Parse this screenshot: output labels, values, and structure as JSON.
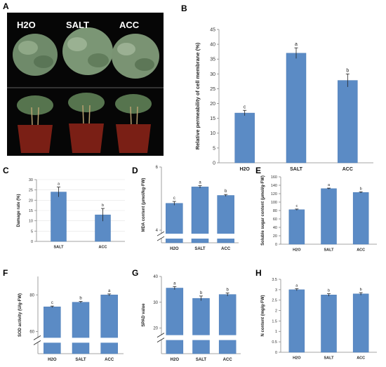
{
  "panels": {
    "A": {
      "letter": "A",
      "labels": [
        "H2O",
        "SALT",
        "ACC"
      ]
    }
  },
  "chart_data": [
    {
      "id": "B",
      "letter": "B",
      "type": "bar",
      "categories": [
        "H2O",
        "SALT",
        "ACC"
      ],
      "values": [
        16.8,
        37.0,
        27.8
      ],
      "errors": [
        0.9,
        1.8,
        2.2
      ],
      "sig": [
        "c",
        "a",
        "b"
      ],
      "ylabel": "Relative permeability of cell membrane (%)",
      "ylim": [
        0,
        45
      ],
      "ticks": [
        0,
        5,
        10,
        15,
        20,
        25,
        30,
        35,
        40,
        45
      ],
      "broken": false,
      "grid": false
    },
    {
      "id": "C",
      "letter": "C",
      "type": "bar",
      "categories": [
        "SALT",
        "ACC"
      ],
      "values": [
        24.0,
        12.9
      ],
      "errors": [
        2.4,
        3.1
      ],
      "sig": [
        "a",
        "b"
      ],
      "ylabel": "Damage rate (%)",
      "ylim": [
        0,
        30
      ],
      "ticks": [
        0,
        5,
        10,
        15,
        20,
        25,
        30
      ],
      "broken": false,
      "grid": true
    },
    {
      "id": "D",
      "letter": "D",
      "type": "bar",
      "categories": [
        "H2O",
        "SALT",
        "ACC"
      ],
      "values": [
        4.85,
        5.37,
        5.1
      ],
      "errors": [
        0.06,
        0.04,
        0.03
      ],
      "sig": [
        "c",
        "a",
        "b"
      ],
      "ylabel": "MDA content (μmol/kg·FW)",
      "ylim": [
        3.6,
        6.0
      ],
      "ticks": [
        4,
        6
      ],
      "broken": true,
      "grid": false
    },
    {
      "id": "E",
      "letter": "E",
      "type": "bar",
      "categories": [
        "H2O",
        "SALT",
        "ACC"
      ],
      "values": [
        82,
        132,
        123
      ],
      "errors": [
        1.5,
        1.2,
        1.5
      ],
      "sig": [
        "c",
        "a",
        "b"
      ],
      "ylabel": "Soluble sugar content (μmol/g·FW)",
      "ylim": [
        0,
        160
      ],
      "ticks": [
        0,
        20,
        40,
        60,
        80,
        100,
        120,
        140,
        160
      ],
      "broken": false,
      "grid": false
    },
    {
      "id": "F",
      "letter": "F",
      "type": "bar",
      "categories": [
        "H2O",
        "SALT",
        "ACC"
      ],
      "values": [
        73.5,
        76,
        80
      ],
      "errors": [
        0.4,
        0.4,
        0.5
      ],
      "sig": [
        "c",
        "b",
        "a"
      ],
      "ylabel": "SOD activity (U/g·FW)",
      "ylim": [
        48,
        90
      ],
      "ticks": [
        60,
        80
      ],
      "broken": true,
      "grid": false
    },
    {
      "id": "G",
      "letter": "G",
      "type": "bar",
      "categories": [
        "H2O",
        "SALT",
        "ACC"
      ],
      "values": [
        35.5,
        31.5,
        33
      ],
      "errors": [
        0.6,
        0.9,
        0.6
      ],
      "sig": [
        "a",
        "b",
        "b"
      ],
      "ylabel": "SPAD value",
      "ylim": [
        10,
        40
      ],
      "ticks": [
        20,
        30,
        40
      ],
      "broken": true,
      "grid": false
    },
    {
      "id": "H",
      "letter": "H",
      "type": "bar",
      "categories": [
        "H2O",
        "SALT",
        "ACC"
      ],
      "values": [
        3.0,
        2.75,
        2.8
      ],
      "errors": [
        0.05,
        0.06,
        0.06
      ],
      "sig": [
        "a",
        "b",
        "b"
      ],
      "ylabel": "N content (mg/g·FW)",
      "ylim": [
        0,
        3.5
      ],
      "ticks": [
        0,
        0.5,
        1,
        1.5,
        2,
        2.5,
        3,
        3.5
      ],
      "broken": false,
      "grid": false
    }
  ]
}
